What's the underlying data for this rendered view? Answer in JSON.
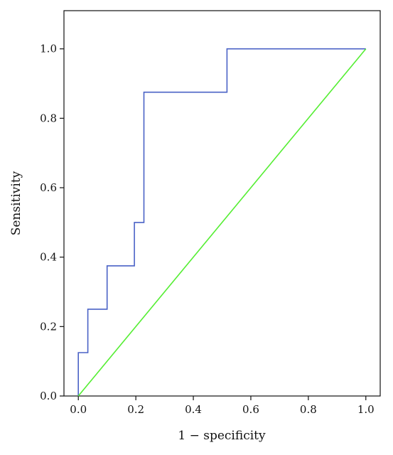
{
  "chart_data": {
    "type": "line",
    "title": "",
    "xlabel": "1 − specificity",
    "ylabel": "Sensitivity",
    "xlim": [
      -0.05,
      1.05
    ],
    "ylim": [
      0.0,
      1.11
    ],
    "x_ticks": [
      0.0,
      0.2,
      0.4,
      0.6,
      0.8,
      1.0
    ],
    "y_ticks": [
      0.0,
      0.2,
      0.4,
      0.6,
      0.8,
      1.0
    ],
    "x_tick_labels": [
      "0.0",
      "0.2",
      "0.4",
      "0.6",
      "0.8",
      "1.0"
    ],
    "y_tick_labels": [
      "0.0",
      "0.2",
      "0.4",
      "0.6",
      "0.8",
      "1.0"
    ],
    "grid": false,
    "legend": "none",
    "series": [
      {
        "color": "#4a62c6",
        "x": [
          0.0,
          0.0,
          0.033,
          0.033,
          0.1,
          0.1,
          0.195,
          0.195,
          0.228,
          0.228,
          0.517,
          0.517,
          1.0
        ],
        "y": [
          0.0,
          0.125,
          0.125,
          0.25,
          0.25,
          0.375,
          0.375,
          0.5,
          0.5,
          0.875,
          0.875,
          1.0,
          1.0
        ]
      },
      {
        "color": "#55ee33",
        "x": [
          0.0,
          1.0
        ],
        "y": [
          0.0,
          1.0
        ]
      }
    ]
  }
}
